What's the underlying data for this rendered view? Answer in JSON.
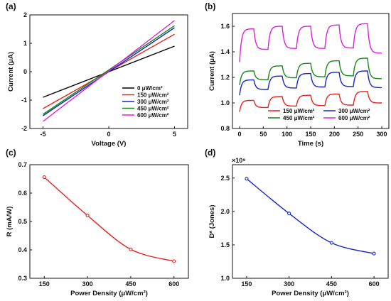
{
  "chart_data": [
    {
      "panel": "(a)",
      "type": "line",
      "xlabel": "Voltage (V)",
      "ylabel": "Current (μA)",
      "xlim": [
        -6,
        6
      ],
      "ylim": [
        -2,
        2
      ],
      "xticks": [
        "-5",
        "0",
        "5"
      ],
      "yticks": [
        "-2",
        "-1",
        "0",
        "1",
        "2"
      ],
      "legend_position": "lower-right",
      "series": [
        {
          "name": "0  μW/cm²",
          "color": "#000000",
          "x": [
            -5,
            5
          ],
          "y": [
            -0.9,
            0.9
          ]
        },
        {
          "name": "150  μW/cm²",
          "color": "#e8211b",
          "x": [
            -5,
            5
          ],
          "y": [
            -1.3,
            1.32
          ]
        },
        {
          "name": "300  μW/cm²",
          "color": "#1426c8",
          "x": [
            -5,
            5
          ],
          "y": [
            -1.55,
            1.55
          ]
        },
        {
          "name": "450  μW/cm²",
          "color": "#138a13",
          "x": [
            -5,
            5
          ],
          "y": [
            -1.5,
            1.62
          ]
        },
        {
          "name": "600  μW/cm²",
          "color": "#e21be2",
          "x": [
            -5,
            5
          ],
          "y": [
            -1.75,
            1.8
          ]
        }
      ]
    },
    {
      "panel": "(b)",
      "type": "line",
      "xlabel": "Time (s)",
      "ylabel": "Current (μA)",
      "xlim": [
        -15,
        315
      ],
      "ylim": [
        0.8,
        1.7
      ],
      "xticks": [
        "0",
        "50",
        "100",
        "150",
        "200",
        "250",
        "300"
      ],
      "yticks": [
        "0.8",
        "1.0",
        "1.2",
        "1.4",
        "1.6"
      ],
      "legend_position": "bottom",
      "period_s": 60,
      "on_s": 30,
      "series": [
        {
          "name": "150  μW/cm²",
          "color": "#e8211b",
          "off": 0.93,
          "on": [
            1.02,
            1.05,
            1.06,
            1.07,
            1.09
          ],
          "end": 1.0
        },
        {
          "name": "300  μW/cm²",
          "color": "#1426c8",
          "off": 1.06,
          "on": [
            1.18,
            1.21,
            1.23,
            1.24,
            1.25
          ],
          "end": 1.12
        },
        {
          "name": "450  μW/cm²",
          "color": "#138a13",
          "off": 1.14,
          "on": [
            1.25,
            1.29,
            1.31,
            1.33,
            1.35
          ],
          "end": 1.19
        },
        {
          "name": "600  μW/cm²",
          "color": "#e21be2",
          "off": 1.32,
          "on": [
            1.58,
            1.6,
            1.6,
            1.61,
            1.62
          ],
          "end": 1.39
        }
      ]
    },
    {
      "panel": "(c)",
      "type": "line",
      "xlabel": "Power Density (μW/cm²)",
      "ylabel": "R (mA/W)",
      "xlim": [
        100,
        650
      ],
      "ylim": [
        0.3,
        0.7
      ],
      "xticks": [
        "150",
        "300",
        "450",
        "600"
      ],
      "yticks": [
        "0.3",
        "0.4",
        "0.5",
        "0.6",
        "0.7"
      ],
      "color": "#e8211b",
      "x": [
        150,
        300,
        450,
        600
      ],
      "y": [
        0.656,
        0.521,
        0.402,
        0.36
      ]
    },
    {
      "panel": "(d)",
      "type": "line",
      "xlabel": "Power Density (μW/cm²)",
      "ylabel": "D* (Jones)",
      "multiplier": "×10⁹",
      "xlim": [
        100,
        650
      ],
      "ylim": [
        1.0,
        2.7
      ],
      "xticks": [
        "150",
        "300",
        "450",
        "600"
      ],
      "yticks": [
        "1.0",
        "1.5",
        "2.0",
        "2.5"
      ],
      "color": "#1426c8",
      "x": [
        150,
        300,
        450,
        600
      ],
      "y": [
        2.49,
        1.97,
        1.53,
        1.37
      ]
    }
  ]
}
